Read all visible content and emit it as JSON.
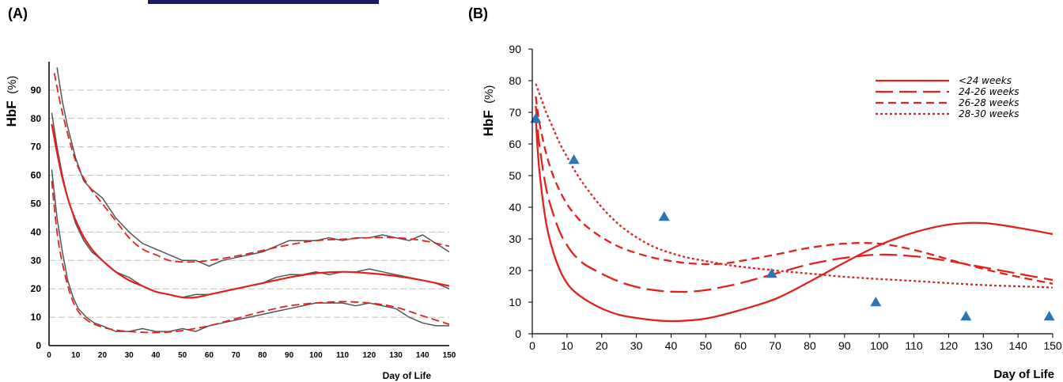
{
  "colors": {
    "fit": "#e2201c",
    "raw": "#555555",
    "grid": "#c8c0a4",
    "marker": "#2e75b6",
    "axis": "#000000",
    "header_bar": "#1c1c5c"
  },
  "chart_data": [
    {
      "panel_label": "(A)",
      "type": "line",
      "xlabel": "Day of Life",
      "ylabel_main": "HbF",
      "ylabel_unit": "(%)",
      "xlim": [
        0,
        150
      ],
      "ylim": [
        0,
        100
      ],
      "xticks": [
        0,
        10,
        20,
        30,
        40,
        50,
        60,
        70,
        80,
        90,
        100,
        110,
        120,
        130,
        140,
        150
      ],
      "yticks": [
        0,
        10,
        20,
        30,
        40,
        50,
        60,
        70,
        80,
        90
      ],
      "grid": "horizontal dashed",
      "series": [
        {
          "style": "raw-grey",
          "x": [
            3,
            5,
            7,
            10,
            13,
            16,
            20,
            25,
            30,
            35,
            40,
            45,
            50,
            55,
            60,
            65,
            70,
            75,
            80,
            85,
            90,
            95,
            100,
            105,
            110,
            115,
            120,
            125,
            130,
            135,
            140,
            145,
            150
          ],
          "values": [
            98,
            86,
            77,
            66,
            58,
            55,
            52,
            45,
            40,
            36,
            34,
            32,
            30,
            30,
            28,
            30,
            31,
            32,
            33,
            35,
            37,
            37,
            37,
            38,
            37,
            38,
            38,
            39,
            38,
            37,
            39,
            36,
            33
          ]
        },
        {
          "style": "fit-dashed",
          "x": [
            2,
            5,
            10,
            15,
            20,
            25,
            30,
            35,
            40,
            45,
            50,
            55,
            60,
            70,
            80,
            90,
            100,
            110,
            120,
            130,
            140,
            150
          ],
          "values": [
            96,
            82,
            65,
            56,
            50,
            44,
            38,
            34,
            32,
            30,
            29.5,
            29.5,
            30,
            31.5,
            33.5,
            35.5,
            37,
            37.5,
            38,
            38,
            37,
            35
          ]
        },
        {
          "style": "raw-grey",
          "x": [
            1,
            3,
            5,
            7,
            10,
            13,
            16,
            20,
            25,
            30,
            35,
            40,
            45,
            50,
            55,
            60,
            65,
            70,
            75,
            80,
            85,
            90,
            95,
            100,
            105,
            110,
            115,
            120,
            125,
            130,
            135,
            140,
            145,
            150
          ],
          "values": [
            82,
            70,
            60,
            52,
            43,
            37,
            33,
            30,
            26,
            24,
            21,
            19,
            18,
            17,
            18,
            18,
            19,
            20,
            21,
            22,
            24,
            25,
            25,
            26,
            25,
            26,
            26,
            27,
            26,
            25,
            24,
            23,
            22,
            20
          ]
        },
        {
          "style": "fit-solid",
          "x": [
            1,
            3,
            5,
            8,
            12,
            16,
            20,
            25,
            30,
            35,
            40,
            45,
            50,
            55,
            60,
            70,
            80,
            90,
            100,
            110,
            120,
            130,
            140,
            150
          ],
          "values": [
            78,
            68,
            59,
            49,
            40,
            34,
            30,
            26,
            23,
            21,
            19,
            18,
            17,
            17,
            18,
            20,
            22,
            24,
            25.5,
            26,
            25.5,
            24.5,
            23,
            21
          ]
        },
        {
          "style": "raw-grey",
          "x": [
            1,
            3,
            5,
            7,
            9,
            11,
            14,
            17,
            20,
            25,
            30,
            35,
            40,
            45,
            50,
            55,
            60,
            65,
            70,
            75,
            80,
            85,
            90,
            95,
            100,
            105,
            110,
            115,
            120,
            125,
            130,
            135,
            140,
            145,
            150
          ],
          "values": [
            62,
            45,
            33,
            23,
            17,
            13,
            10,
            8,
            7,
            5,
            5,
            6,
            5,
            5,
            6,
            5,
            7,
            8,
            9,
            10,
            11,
            12,
            13,
            14,
            15,
            15,
            15,
            14,
            15,
            14,
            13,
            10,
            8,
            7,
            7
          ]
        },
        {
          "style": "fit-dashed",
          "x": [
            1,
            3,
            5,
            8,
            11,
            15,
            20,
            25,
            30,
            35,
            40,
            45,
            50,
            60,
            70,
            80,
            90,
            100,
            110,
            120,
            130,
            140,
            150
          ],
          "values": [
            58,
            40,
            29,
            18,
            12,
            8.5,
            6.5,
            5.5,
            5,
            4.7,
            4.6,
            4.8,
            5.3,
            7,
            9.5,
            12,
            14,
            15,
            15.5,
            15,
            13.5,
            10.5,
            7.5
          ]
        }
      ]
    },
    {
      "panel_label": "(B)",
      "type": "line",
      "xlabel": "Day of Life",
      "ylabel_main": "HbF",
      "ylabel_unit": "(%)",
      "xlim": [
        0,
        150
      ],
      "ylim": [
        0,
        90
      ],
      "xticks": [
        0,
        10,
        20,
        30,
        40,
        50,
        60,
        70,
        80,
        90,
        100,
        110,
        120,
        130,
        140,
        150
      ],
      "yticks": [
        0,
        10,
        20,
        30,
        40,
        50,
        60,
        70,
        80,
        90
      ],
      "grid": "off",
      "legend_position": "top-right",
      "series": [
        {
          "name": "<24 weeks",
          "dash": "solid",
          "x": [
            1,
            2,
            4,
            6,
            8,
            10,
            12,
            15,
            20,
            25,
            30,
            35,
            40,
            45,
            50,
            55,
            60,
            70,
            80,
            90,
            100,
            110,
            120,
            130,
            140,
            150
          ],
          "values": [
            68,
            52,
            35,
            26,
            20,
            16,
            13.5,
            11,
            8,
            6,
            5,
            4.3,
            4,
            4.2,
            4.8,
            6,
            7.5,
            11,
            16.5,
            22.5,
            28,
            32,
            34.5,
            35,
            33.5,
            31.5
          ]
        },
        {
          "name": "24-26 weeks",
          "dash": "long-dash",
          "x": [
            1,
            2,
            4,
            6,
            8,
            10,
            12,
            15,
            20,
            25,
            30,
            35,
            40,
            45,
            50,
            55,
            60,
            70,
            80,
            90,
            100,
            110,
            120,
            130,
            140,
            150
          ],
          "values": [
            72,
            60,
            46,
            38,
            32,
            28,
            25,
            22,
            19,
            16.5,
            14.8,
            13.8,
            13.3,
            13.3,
            13.8,
            14.8,
            16,
            19,
            22,
            24,
            25,
            24.5,
            23,
            21,
            19,
            17
          ]
        },
        {
          "name": "26-28 weeks",
          "dash": "short-dash",
          "x": [
            1,
            2,
            4,
            6,
            8,
            10,
            12,
            15,
            20,
            25,
            30,
            35,
            40,
            45,
            50,
            55,
            60,
            70,
            80,
            90,
            100,
            110,
            120,
            130,
            140,
            150
          ],
          "values": [
            75,
            67,
            57,
            50,
            45,
            41,
            38,
            34.5,
            30.5,
            27.5,
            25.5,
            24,
            23,
            22.3,
            22,
            22.2,
            23,
            25,
            27.2,
            28.5,
            28.5,
            26.5,
            23.5,
            20.5,
            18,
            15.8
          ]
        },
        {
          "name": "28-30 weeks",
          "dash": "dotted",
          "x": [
            1,
            2,
            4,
            6,
            8,
            10,
            12,
            15,
            20,
            25,
            30,
            35,
            40,
            45,
            50,
            55,
            60,
            70,
            80,
            90,
            100,
            110,
            120,
            130,
            140,
            150
          ],
          "values": [
            79,
            76,
            70,
            65,
            60,
            56,
            52,
            47,
            40,
            34.5,
            30.5,
            27.5,
            25.5,
            24,
            23,
            22,
            21.2,
            20,
            19,
            18,
            17.3,
            16.7,
            16,
            15.4,
            15,
            14.6
          ]
        }
      ],
      "markers": {
        "shape": "triangle",
        "x": [
          1,
          12,
          38,
          69,
          99,
          125,
          149
        ],
        "values": [
          68,
          55,
          37,
          19,
          10,
          5.5,
          5.5
        ]
      }
    }
  ]
}
